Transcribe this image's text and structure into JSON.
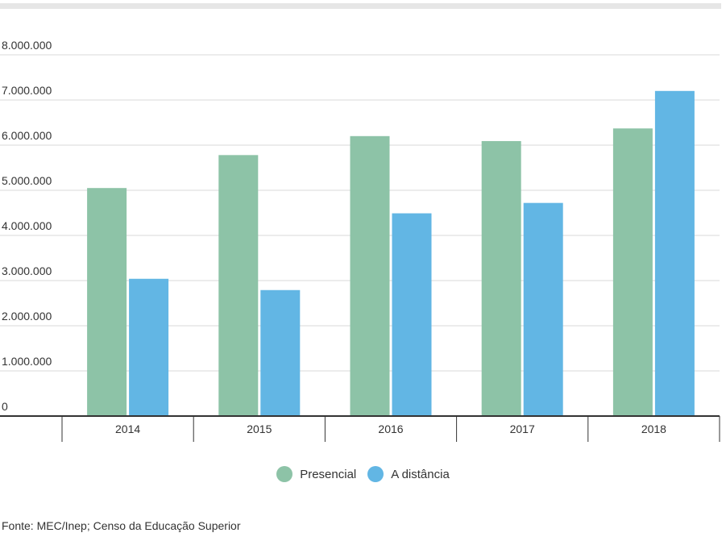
{
  "chart_data": {
    "type": "bar",
    "categories": [
      "2014",
      "2015",
      "2016",
      "2017",
      "2018"
    ],
    "series": [
      {
        "name": "Presencial",
        "color": "#8dc3a7",
        "values": [
          5050000,
          5780000,
          6200000,
          6090000,
          6370000
        ]
      },
      {
        "name": "A distância",
        "color": "#62b6e4",
        "values": [
          3040000,
          2790000,
          4490000,
          4720000,
          7200000
        ]
      }
    ],
    "ylim": [
      0,
      8000000
    ],
    "yticks": [
      0,
      1000000,
      2000000,
      3000000,
      4000000,
      5000000,
      6000000,
      7000000,
      8000000
    ],
    "ytick_labels": [
      "0",
      "1.000.000",
      "2.000.000",
      "3.000.000",
      "4.000.000",
      "5.000.000",
      "6.000.000",
      "7.000.000",
      "8.000.000"
    ],
    "grid": true,
    "legend_position": "bottom-center"
  },
  "legend": {
    "items": [
      {
        "label": "Presencial",
        "color": "#8dc3a7"
      },
      {
        "label": "A distância",
        "color": "#62b6e4"
      }
    ]
  },
  "source": "Fonte: MEC/Inep; Censo da Educação Superior"
}
